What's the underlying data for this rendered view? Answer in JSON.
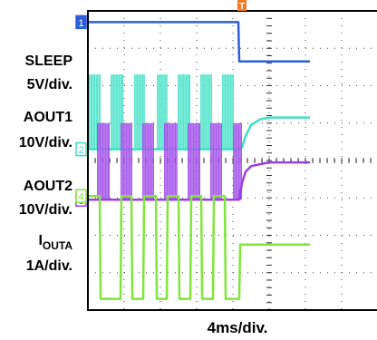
{
  "chart_data": {
    "type": "line",
    "title": "",
    "xlabel": "4ms/div.",
    "grid": true,
    "x_divisions": 10,
    "y_divisions": 8,
    "time_per_div_ms": 4,
    "trigger_marker": "T",
    "trigger_time_ms": 17,
    "channels": [
      {
        "name_line1": "SLEEP",
        "name_sub": "",
        "scale": "5V/div.",
        "number": "1",
        "color": "#2b5fd9",
        "time_ms": [
          0,
          16.6,
          16.7,
          24.5
        ],
        "level_div": [
          7.7,
          7.7,
          6.65,
          6.65
        ]
      },
      {
        "name_line1": "AOUT1",
        "name_sub": "",
        "scale": "10V/div.",
        "number": "2",
        "color": "#3fe0c5",
        "time_ms": [
          0,
          16.7,
          17.0,
          17.4,
          18.0,
          19.0,
          20.0,
          24.5
        ],
        "level_div": [
          4.3,
          4.3,
          4.35,
          4.65,
          4.95,
          5.1,
          5.15,
          5.15
        ],
        "pwm_bursts_ms": [
          [
            0.05,
            1.4
          ],
          [
            2.5,
            3.9
          ],
          [
            5.1,
            6.3
          ],
          [
            7.6,
            8.8
          ],
          [
            9.9,
            11.3
          ],
          [
            12.4,
            13.7
          ],
          [
            14.8,
            16.1
          ]
        ],
        "pwm_high_div": 6.3
      },
      {
        "name_line1": "AOUT2",
        "name_sub": "",
        "scale": "10V/div.",
        "number": "3",
        "color": "#9b3fe8",
        "time_ms": [
          0,
          16.7,
          17.0,
          17.4,
          18.0,
          19.0,
          20.0,
          24.5
        ],
        "level_div": [
          2.95,
          2.95,
          3.4,
          3.7,
          3.85,
          3.9,
          3.95,
          3.95
        ],
        "pwm_bursts_ms": [
          [
            1.0,
            2.4
          ],
          [
            3.6,
            4.9
          ],
          [
            6.0,
            7.3
          ],
          [
            8.4,
            9.9
          ],
          [
            11.0,
            12.4
          ],
          [
            13.5,
            14.8
          ],
          [
            16.0,
            17.0
          ]
        ],
        "pwm_high_div": 5.0
      },
      {
        "name_line1": "I",
        "name_sub": "OUTA",
        "scale": "1A/div.",
        "number": "4",
        "color": "#7fe63a",
        "time_ms": [
          0,
          1.3,
          1.4,
          3.6,
          3.7,
          4.8,
          4.9,
          6.1,
          6.2,
          7.5,
          7.6,
          8.7,
          8.8,
          10.0,
          10.1,
          11.3,
          11.4,
          12.5,
          12.6,
          13.8,
          13.9,
          15.1,
          15.2,
          16.7,
          16.8,
          24.5
        ],
        "level_div": [
          3.05,
          3.05,
          0.3,
          0.3,
          3.05,
          3.05,
          0.3,
          0.3,
          3.05,
          3.05,
          0.3,
          0.3,
          3.05,
          3.05,
          0.3,
          0.3,
          3.05,
          3.05,
          0.3,
          0.3,
          3.05,
          3.05,
          0.3,
          0.3,
          1.75,
          1.75
        ]
      }
    ]
  }
}
